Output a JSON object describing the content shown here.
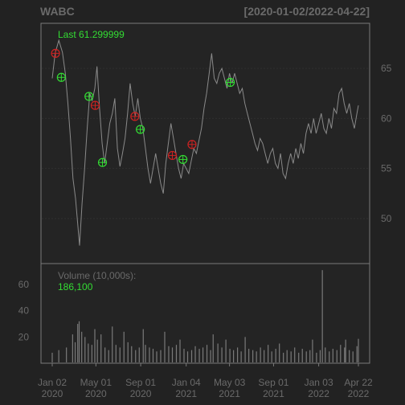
{
  "chart_data": {
    "type": "line",
    "title": "WABC",
    "date_range_label": "[2020-01-02/2022-04-22]",
    "last_label": "Last 61.299999",
    "volume_label": "Volume (10,000s):",
    "volume_last": "186,100",
    "price_axis": {
      "ylim": [
        45.5,
        69.5
      ],
      "ticks": [
        "50",
        "55",
        "60",
        "65"
      ]
    },
    "volume_axis": {
      "ylim": [
        0,
        76
      ],
      "ticks": [
        "20",
        "40",
        "60"
      ]
    },
    "x_ticks": [
      {
        "date": "2020-01-02",
        "label": "Jan 02",
        "year": "2020"
      },
      {
        "date": "2020-05-01",
        "label": "May 01",
        "year": "2020"
      },
      {
        "date": "2020-09-01",
        "label": "Sep 01",
        "year": "2020"
      },
      {
        "date": "2021-01-04",
        "label": "Jan 04",
        "year": "2021"
      },
      {
        "date": "2021-05-03",
        "label": "May 03",
        "year": "2021"
      },
      {
        "date": "2021-09-01",
        "label": "Sep 01",
        "year": "2021"
      },
      {
        "date": "2022-01-03",
        "label": "Jan 03",
        "year": "2022"
      },
      {
        "date": "2022-04-22",
        "label": "Apr 22",
        "year": "2022"
      }
    ],
    "price_series": [
      [
        "2020-01-02",
        64.0
      ],
      [
        "2020-01-10",
        66.5
      ],
      [
        "2020-01-20",
        67.8
      ],
      [
        "2020-01-30",
        66.6
      ],
      [
        "2020-02-07",
        64.5
      ],
      [
        "2020-02-14",
        61.5
      ],
      [
        "2020-02-21",
        58.0
      ],
      [
        "2020-02-28",
        54.0
      ],
      [
        "2020-03-06",
        52.0
      ],
      [
        "2020-03-13",
        49.0
      ],
      [
        "2020-03-17",
        47.3
      ],
      [
        "2020-03-24",
        51.5
      ],
      [
        "2020-03-31",
        55.0
      ],
      [
        "2020-04-07",
        59.0
      ],
      [
        "2020-04-14",
        62.5
      ],
      [
        "2020-04-21",
        61.8
      ],
      [
        "2020-04-28",
        63.0
      ],
      [
        "2020-05-04",
        65.2
      ],
      [
        "2020-05-11",
        61.0
      ],
      [
        "2020-05-18",
        57.5
      ],
      [
        "2020-05-25",
        55.5
      ],
      [
        "2020-06-01",
        57.5
      ],
      [
        "2020-06-08",
        59.5
      ],
      [
        "2020-06-15",
        60.5
      ],
      [
        "2020-06-22",
        62.0
      ],
      [
        "2020-06-29",
        57.0
      ],
      [
        "2020-07-06",
        55.2
      ],
      [
        "2020-07-13",
        56.5
      ],
      [
        "2020-07-20",
        58.0
      ],
      [
        "2020-07-27",
        60.5
      ],
      [
        "2020-08-03",
        63.5
      ],
      [
        "2020-08-10",
        61.5
      ],
      [
        "2020-08-17",
        60.2
      ],
      [
        "2020-08-24",
        62.0
      ],
      [
        "2020-08-31",
        60.0
      ],
      [
        "2020-09-07",
        59.0
      ],
      [
        "2020-09-14",
        57.0
      ],
      [
        "2020-09-21",
        55.0
      ],
      [
        "2020-09-28",
        53.5
      ],
      [
        "2020-10-05",
        55.0
      ],
      [
        "2020-10-12",
        56.5
      ],
      [
        "2020-10-19",
        55.0
      ],
      [
        "2020-10-26",
        53.5
      ],
      [
        "2020-11-02",
        52.5
      ],
      [
        "2020-11-09",
        55.5
      ],
      [
        "2020-11-16",
        57.5
      ],
      [
        "2020-11-23",
        59.5
      ],
      [
        "2020-11-30",
        58.0
      ],
      [
        "2020-12-07",
        56.5
      ],
      [
        "2020-12-14",
        55.0
      ],
      [
        "2020-12-21",
        54.0
      ],
      [
        "2020-12-28",
        55.5
      ],
      [
        "2021-01-04",
        55.0
      ],
      [
        "2021-01-11",
        54.5
      ],
      [
        "2021-01-18",
        55.8
      ],
      [
        "2021-01-25",
        57.0
      ],
      [
        "2021-02-01",
        56.5
      ],
      [
        "2021-02-08",
        57.8
      ],
      [
        "2021-02-15",
        59.0
      ],
      [
        "2021-02-22",
        61.0
      ],
      [
        "2021-03-01",
        62.5
      ],
      [
        "2021-03-08",
        64.5
      ],
      [
        "2021-03-15",
        66.5
      ],
      [
        "2021-03-22",
        64.0
      ],
      [
        "2021-03-29",
        63.5
      ],
      [
        "2021-04-05",
        64.5
      ],
      [
        "2021-04-12",
        65.0
      ],
      [
        "2021-04-19",
        64.0
      ],
      [
        "2021-04-26",
        63.0
      ],
      [
        "2021-05-03",
        64.5
      ],
      [
        "2021-05-10",
        63.5
      ],
      [
        "2021-05-17",
        64.5
      ],
      [
        "2021-05-24",
        63.5
      ],
      [
        "2021-05-31",
        62.5
      ],
      [
        "2021-06-07",
        63.0
      ],
      [
        "2021-06-14",
        61.5
      ],
      [
        "2021-06-21",
        60.5
      ],
      [
        "2021-06-28",
        59.5
      ],
      [
        "2021-07-05",
        58.5
      ],
      [
        "2021-07-12",
        57.5
      ],
      [
        "2021-07-19",
        56.8
      ],
      [
        "2021-07-26",
        58.0
      ],
      [
        "2021-08-02",
        57.5
      ],
      [
        "2021-08-09",
        56.5
      ],
      [
        "2021-08-16",
        55.5
      ],
      [
        "2021-08-23",
        56.5
      ],
      [
        "2021-08-30",
        57.0
      ],
      [
        "2021-09-06",
        55.5
      ],
      [
        "2021-09-13",
        55.0
      ],
      [
        "2021-09-20",
        56.5
      ],
      [
        "2021-09-27",
        54.5
      ],
      [
        "2021-10-04",
        54.0
      ],
      [
        "2021-10-11",
        55.5
      ],
      [
        "2021-10-18",
        56.5
      ],
      [
        "2021-10-25",
        55.5
      ],
      [
        "2021-11-01",
        57.0
      ],
      [
        "2021-11-08",
        56.0
      ],
      [
        "2021-11-15",
        57.5
      ],
      [
        "2021-11-22",
        56.5
      ],
      [
        "2021-11-29",
        58.5
      ],
      [
        "2021-12-06",
        59.5
      ],
      [
        "2021-12-13",
        58.5
      ],
      [
        "2021-12-20",
        60.0
      ],
      [
        "2021-12-27",
        58.5
      ],
      [
        "2022-01-03",
        59.5
      ],
      [
        "2022-01-10",
        60.5
      ],
      [
        "2022-01-17",
        59.0
      ],
      [
        "2022-01-24",
        58.5
      ],
      [
        "2022-01-31",
        60.0
      ],
      [
        "2022-02-07",
        59.0
      ],
      [
        "2022-02-14",
        61.0
      ],
      [
        "2022-02-21",
        60.5
      ],
      [
        "2022-02-28",
        62.5
      ],
      [
        "2022-03-07",
        63.0
      ],
      [
        "2022-03-14",
        61.5
      ],
      [
        "2022-03-21",
        60.5
      ],
      [
        "2022-03-28",
        61.5
      ],
      [
        "2022-04-04",
        60.0
      ],
      [
        "2022-04-11",
        59.0
      ],
      [
        "2022-04-18",
        60.5
      ],
      [
        "2022-04-22",
        61.3
      ]
    ],
    "markers": [
      {
        "date": "2020-01-11",
        "price": 66.5,
        "color": "#cc2222"
      },
      {
        "date": "2020-01-27",
        "price": 64.1,
        "color": "#33dd33"
      },
      {
        "date": "2020-04-12",
        "price": 62.2,
        "color": "#33dd33"
      },
      {
        "date": "2020-04-29",
        "price": 61.3,
        "color": "#cc2222"
      },
      {
        "date": "2020-05-19",
        "price": 55.6,
        "color": "#33dd33"
      },
      {
        "date": "2020-08-16",
        "price": 60.2,
        "color": "#cc2222"
      },
      {
        "date": "2020-08-31",
        "price": 58.9,
        "color": "#33dd33"
      },
      {
        "date": "2020-11-27",
        "price": 56.3,
        "color": "#cc2222"
      },
      {
        "date": "2020-12-26",
        "price": 55.9,
        "color": "#33dd33"
      },
      {
        "date": "2021-01-20",
        "price": 57.4,
        "color": "#cc2222"
      },
      {
        "date": "2021-05-05",
        "price": 63.6,
        "color": "#33dd33"
      }
    ],
    "volume_series": [
      [
        "2020-01-02",
        8
      ],
      [
        "2020-01-20",
        10
      ],
      [
        "2020-02-10",
        12
      ],
      [
        "2020-02-27",
        22
      ],
      [
        "2020-03-05",
        16
      ],
      [
        "2020-03-12",
        30
      ],
      [
        "2020-03-16",
        32
      ],
      [
        "2020-03-23",
        24
      ],
      [
        "2020-04-01",
        20
      ],
      [
        "2020-04-10",
        15
      ],
      [
        "2020-04-20",
        14
      ],
      [
        "2020-04-28",
        26
      ],
      [
        "2020-05-05",
        18
      ],
      [
        "2020-05-15",
        22
      ],
      [
        "2020-05-26",
        12
      ],
      [
        "2020-06-05",
        10
      ],
      [
        "2020-06-15",
        28
      ],
      [
        "2020-06-25",
        14
      ],
      [
        "2020-07-06",
        12
      ],
      [
        "2020-07-17",
        24
      ],
      [
        "2020-07-28",
        16
      ],
      [
        "2020-08-07",
        13
      ],
      [
        "2020-08-18",
        10
      ],
      [
        "2020-08-28",
        12
      ],
      [
        "2020-09-08",
        26
      ],
      [
        "2020-09-14",
        14
      ],
      [
        "2020-09-25",
        12
      ],
      [
        "2020-10-05",
        11
      ],
      [
        "2020-10-15",
        9
      ],
      [
        "2020-10-26",
        10
      ],
      [
        "2020-11-06",
        24
      ],
      [
        "2020-11-17",
        13
      ],
      [
        "2020-11-27",
        12
      ],
      [
        "2020-12-08",
        14
      ],
      [
        "2020-12-18",
        18
      ],
      [
        "2020-12-29",
        11
      ],
      [
        "2021-01-08",
        9
      ],
      [
        "2021-01-19",
        10
      ],
      [
        "2021-01-29",
        13
      ],
      [
        "2021-02-09",
        11
      ],
      [
        "2021-02-19",
        12
      ],
      [
        "2021-03-02",
        14
      ],
      [
        "2021-03-12",
        10
      ],
      [
        "2021-03-19",
        22
      ],
      [
        "2021-04-01",
        15
      ],
      [
        "2021-04-12",
        12
      ],
      [
        "2021-04-23",
        18
      ],
      [
        "2021-05-04",
        11
      ],
      [
        "2021-05-14",
        10
      ],
      [
        "2021-05-25",
        12
      ],
      [
        "2021-06-04",
        9
      ],
      [
        "2021-06-15",
        20
      ],
      [
        "2021-06-25",
        11
      ],
      [
        "2021-07-06",
        10
      ],
      [
        "2021-07-16",
        9
      ],
      [
        "2021-07-27",
        12
      ],
      [
        "2021-08-06",
        10
      ],
      [
        "2021-08-17",
        14
      ],
      [
        "2021-08-27",
        9
      ],
      [
        "2021-09-07",
        11
      ],
      [
        "2021-09-17",
        15
      ],
      [
        "2021-09-28",
        8
      ],
      [
        "2021-10-08",
        10
      ],
      [
        "2021-10-19",
        9
      ],
      [
        "2021-10-29",
        12
      ],
      [
        "2021-11-09",
        8
      ],
      [
        "2021-11-19",
        11
      ],
      [
        "2021-11-30",
        9
      ],
      [
        "2021-12-10",
        10
      ],
      [
        "2021-12-17",
        18
      ],
      [
        "2021-12-28",
        8
      ],
      [
        "2022-01-07",
        10
      ],
      [
        "2022-01-13",
        71
      ],
      [
        "2022-01-21",
        12
      ],
      [
        "2022-02-01",
        9
      ],
      [
        "2022-02-11",
        11
      ],
      [
        "2022-02-22",
        10
      ],
      [
        "2022-03-04",
        14
      ],
      [
        "2022-03-15",
        12
      ],
      [
        "2022-03-18",
        18
      ],
      [
        "2022-03-28",
        10
      ],
      [
        "2022-04-07",
        9
      ],
      [
        "2022-04-18",
        13
      ],
      [
        "2022-04-22",
        18.6
      ]
    ]
  }
}
